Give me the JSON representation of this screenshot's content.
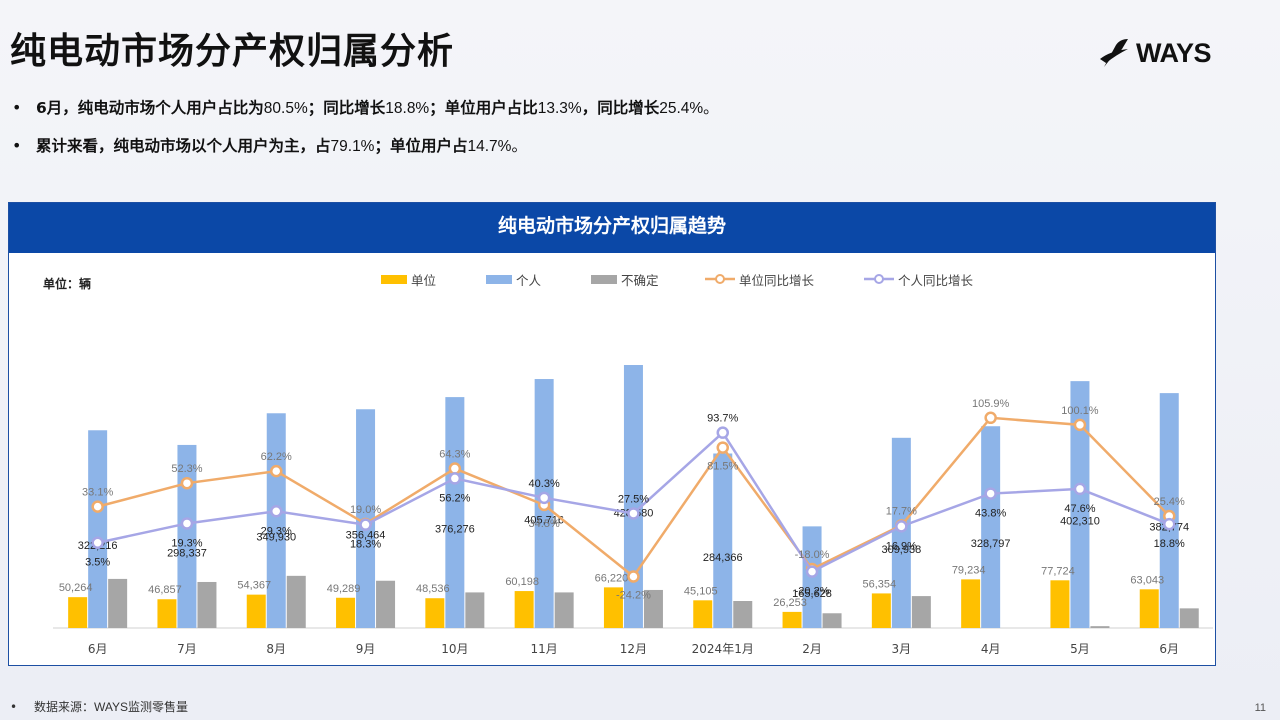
{
  "title": "纯电动市场分产权归属分析",
  "logo_text": "WAYS",
  "bullets": [
    {
      "parts": [
        "6月，纯电动市场个人用户占比为",
        "80.5%",
        "；同比增长",
        "18.8%",
        "；单位用户占比",
        "13.3%",
        "，同比增长",
        "25.4%",
        "。"
      ]
    },
    {
      "parts": [
        "累计来看，纯电动市场以个人用户为主，占",
        "79.1%",
        "；单位用户占",
        "14.7%",
        "。"
      ]
    }
  ],
  "panel_title": "纯电动市场分产权归属趋势",
  "unit_label": "单位：辆",
  "source": {
    "label": "数据来源：",
    "name": "WAYS",
    "suffix": "监测零售量"
  },
  "page_number": "11",
  "colors": {
    "unit": "#ffc000",
    "personal": "#8db4e8",
    "unknown": "#a6a6a6",
    "unit_yoy": "#f0ab6a",
    "personal_yoy": "#a6a6e6"
  },
  "chart_data": {
    "type": "bar",
    "categories": [
      "6月",
      "7月",
      "8月",
      "9月",
      "10月",
      "11月",
      "12月",
      "2024年1月",
      "2月",
      "3月",
      "4月",
      "5月",
      "6月"
    ],
    "series": [
      {
        "name": "单位",
        "values": [
          50264,
          46857,
          54367,
          49289,
          48536,
          60198,
          66220,
          45105,
          26253,
          56354,
          79234,
          77724,
          63043
        ]
      },
      {
        "name": "个人",
        "values": [
          322216,
          298337,
          349930,
          356464,
          376276,
          405716,
          428580,
          284366,
          165628,
          309938,
          328797,
          402310,
          382774
        ]
      },
      {
        "name": "不确定",
        "values": [
          80000,
          75000,
          85000,
          77000,
          58000,
          58000,
          62000,
          44000,
          24000,
          52000,
          0,
          3000,
          32000
        ]
      },
      {
        "name": "单位同比增长",
        "type": "line",
        "values": [
          33.1,
          52.3,
          62.2,
          19.0,
          64.3,
          34.5,
          -24.2,
          81.5,
          -18.0,
          17.7,
          105.9,
          100.1,
          25.4
        ]
      },
      {
        "name": "个人同比增长",
        "type": "line",
        "values": [
          3.5,
          19.3,
          29.3,
          18.3,
          56.2,
          40.3,
          27.5,
          93.7,
          -20.2,
          16.9,
          43.8,
          47.6,
          18.8
        ]
      }
    ],
    "value_labels": {
      "单位": [
        "50,264",
        "46,857",
        "54,367",
        "49,289",
        "48,536",
        "60,198",
        "66,220",
        "45,105",
        "26,253",
        "56,354",
        "79,234",
        "77,724",
        "63,043"
      ],
      "个人": [
        "322,216",
        "298,337",
        "349,930",
        "356,464",
        "376,276",
        "405,716",
        "428,580",
        "284,366",
        "165,628",
        "309,938",
        "328,797",
        "402,310",
        "382,774"
      ],
      "单位同比增长": [
        "33.1%",
        "52.3%",
        "62.2%",
        "19.0%",
        "64.3%",
        "34.5%",
        "-24.2%",
        "81.5%",
        "-18.0%",
        "17.7%",
        "105.9%",
        "100.1%",
        "25.4%"
      ],
      "个人同比增长": [
        "3.5%",
        "19.3%",
        "29.3%",
        "18.3%",
        "56.2%",
        "40.3%",
        "27.5%",
        "93.7%",
        "-20.2%",
        "16.9%",
        "43.8%",
        "47.6%",
        "18.8%"
      ]
    },
    "ylim_bar": [
      0,
      440000
    ],
    "ylim_line": [
      -50,
      200
    ],
    "legend_position": "top-center",
    "grid": false
  }
}
